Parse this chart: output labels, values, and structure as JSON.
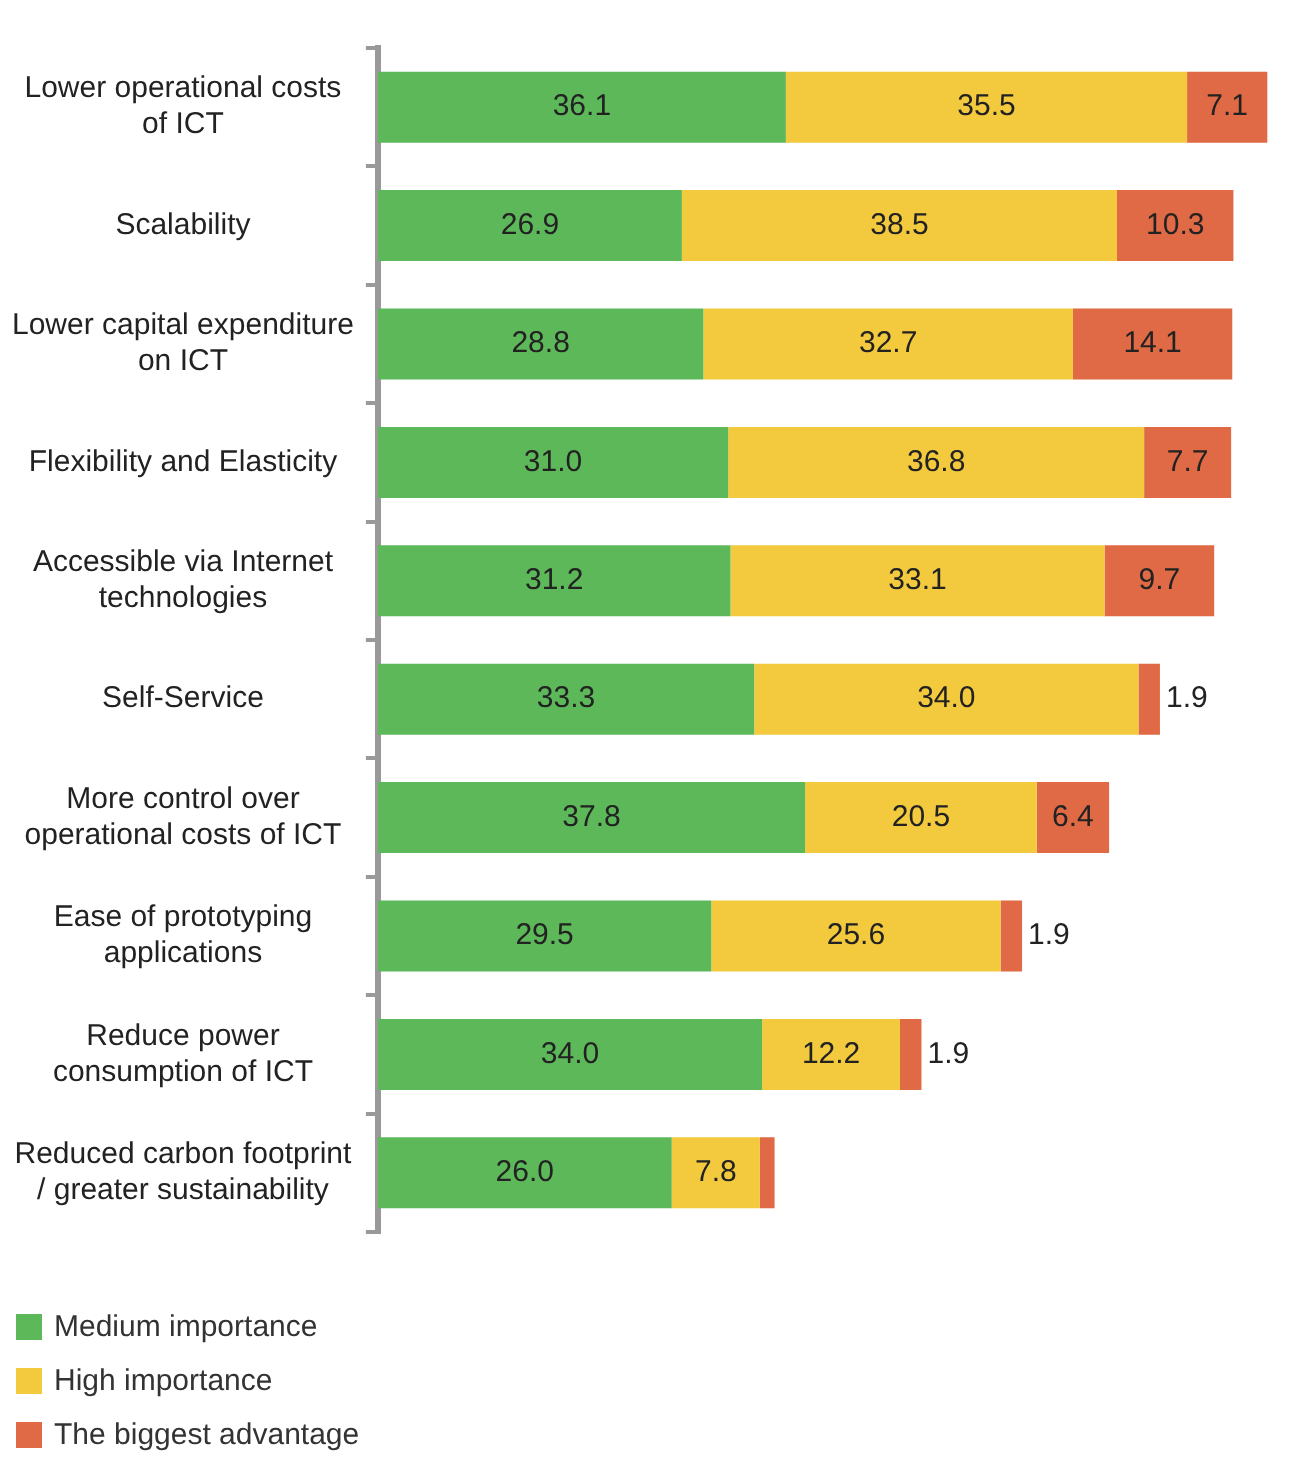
{
  "chart_data": {
    "type": "bar",
    "orientation": "horizontal",
    "stacked": true,
    "legend": "bottom left",
    "tick_labels": "y",
    "categories": [
      "Lower operational costs of ICT",
      "Scalability",
      "Lower capital expenditure on ICT",
      "Flexibility and Elasticity",
      "Accessible via Internet technologies",
      "Self-Service",
      "More control over operational costs of ICT",
      "Ease of prototyping applications",
      "Reduce power consumption of ICT",
      "Reduced carbon footprint / greater sustainability"
    ],
    "series": [
      {
        "name": "Medium importance",
        "color": "#5db85a",
        "values": [
          36.1,
          26.9,
          28.8,
          31.0,
          31.2,
          33.3,
          37.8,
          29.5,
          34.0,
          26.0
        ],
        "value_labels": [
          "36.1",
          "26.9",
          "28.8",
          "31.0",
          "31.2",
          "33.3",
          "37.8",
          "29.5",
          "34.0",
          "26.0"
        ]
      },
      {
        "name": "High importance",
        "color": "#f3c93e",
        "values": [
          35.5,
          38.5,
          32.7,
          36.8,
          33.1,
          34.0,
          20.5,
          25.6,
          12.2,
          7.8
        ],
        "value_labels": [
          "35.5",
          "38.5",
          "32.7",
          "36.8",
          "33.1",
          "34.0",
          "20.5",
          "25.6",
          "12.2",
          "7.8"
        ]
      },
      {
        "name": "The biggest advantage",
        "color": "#df6a45",
        "values": [
          7.1,
          10.3,
          14.1,
          7.7,
          9.7,
          1.9,
          6.4,
          1.9,
          1.9,
          1.3
        ],
        "value_labels": [
          "7.1",
          "10.3",
          "14.1",
          "7.7",
          "9.7",
          "1.9",
          "6.4",
          "1.9",
          "1.9",
          null
        ]
      }
    ]
  }
}
